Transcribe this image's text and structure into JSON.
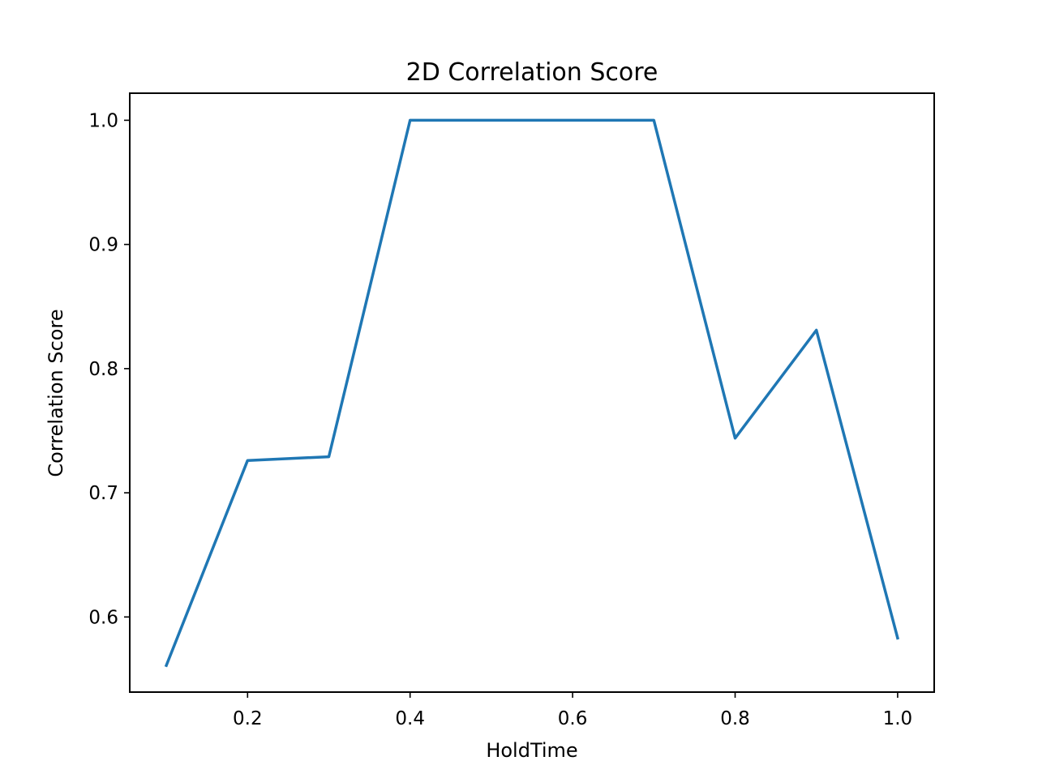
{
  "chart_data": {
    "type": "line",
    "title": "2D Correlation Score",
    "xlabel": "HoldTime",
    "ylabel": "Correlation Score",
    "xlim": [
      0.055,
      1.045
    ],
    "ylim": [
      0.5395,
      1.0218
    ],
    "xticks": [
      0.2,
      0.4,
      0.6,
      0.8,
      1.0
    ],
    "xtick_labels": [
      "0.2",
      "0.4",
      "0.6",
      "0.8",
      "1.0"
    ],
    "yticks": [
      0.6,
      0.7,
      0.8,
      0.9,
      1.0
    ],
    "ytick_labels": [
      "0.6",
      "0.7",
      "0.8",
      "0.9",
      "1.0"
    ],
    "grid": false,
    "series": [
      {
        "color": "#1f77b4",
        "x": [
          0.1,
          0.2,
          0.3,
          0.4,
          0.5,
          0.6,
          0.7,
          0.8,
          0.9,
          1.0
        ],
        "y": [
          0.561,
          0.726,
          0.729,
          1.0,
          1.0,
          1.0,
          1.0,
          0.744,
          0.831,
          0.583
        ]
      }
    ]
  }
}
